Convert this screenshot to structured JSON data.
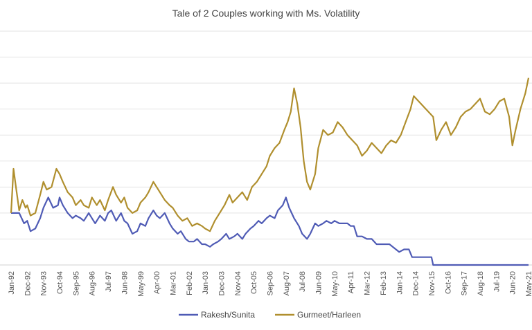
{
  "chart_data": {
    "type": "line",
    "title": "Tale of 2 Couples working with Ms. Volatility",
    "xlabel": "",
    "ylabel": "",
    "grid": true,
    "legend_position": "bottom",
    "x_ticks": [
      "Jan-92",
      "Dec-92",
      "Nov-93",
      "Oct-94",
      "Sep-95",
      "Aug-96",
      "Jul-97",
      "Jun-98",
      "May-99",
      "Apr-00",
      "Mar-01",
      "Feb-02",
      "Jan-03",
      "Dec-03",
      "Nov-04",
      "Oct-05",
      "Sep-06",
      "Aug-07",
      "Jul-08",
      "Jun-09",
      "May-10",
      "Apr-11",
      "Mar-12",
      "Feb-13",
      "Jan-14",
      "Dec-14",
      "Nov-15",
      "Oct-16",
      "Sep-17",
      "Aug-18",
      "Jul-19",
      "Jun-20",
      "May-21"
    ],
    "ylim": [
      0,
      9
    ],
    "series": [
      {
        "name": "Rakesh/Sunita",
        "color": "#4f5bb5",
        "points": [
          [
            0,
            2.0
          ],
          [
            0.2,
            2.0
          ],
          [
            0.5,
            2.0
          ],
          [
            0.8,
            1.6
          ],
          [
            1.0,
            1.7
          ],
          [
            1.2,
            1.3
          ],
          [
            1.5,
            1.4
          ],
          [
            1.8,
            1.8
          ],
          [
            2.0,
            2.2
          ],
          [
            2.3,
            2.6
          ],
          [
            2.6,
            2.2
          ],
          [
            2.9,
            2.3
          ],
          [
            3.0,
            2.6
          ],
          [
            3.2,
            2.3
          ],
          [
            3.5,
            2.0
          ],
          [
            3.8,
            1.8
          ],
          [
            4.0,
            1.9
          ],
          [
            4.3,
            1.8
          ],
          [
            4.5,
            1.7
          ],
          [
            4.8,
            2.0
          ],
          [
            5.0,
            1.8
          ],
          [
            5.2,
            1.6
          ],
          [
            5.5,
            1.9
          ],
          [
            5.8,
            1.7
          ],
          [
            6.0,
            2.0
          ],
          [
            6.2,
            2.1
          ],
          [
            6.5,
            1.7
          ],
          [
            6.8,
            2.0
          ],
          [
            7.0,
            1.7
          ],
          [
            7.2,
            1.6
          ],
          [
            7.5,
            1.2
          ],
          [
            7.8,
            1.3
          ],
          [
            8.0,
            1.6
          ],
          [
            8.3,
            1.5
          ],
          [
            8.5,
            1.8
          ],
          [
            8.8,
            2.1
          ],
          [
            9.0,
            1.9
          ],
          [
            9.2,
            1.8
          ],
          [
            9.5,
            2.0
          ],
          [
            9.8,
            1.6
          ],
          [
            10.0,
            1.4
          ],
          [
            10.3,
            1.2
          ],
          [
            10.5,
            1.3
          ],
          [
            10.8,
            1.0
          ],
          [
            11.0,
            0.9
          ],
          [
            11.3,
            0.9
          ],
          [
            11.5,
            1.0
          ],
          [
            11.8,
            0.8
          ],
          [
            12.0,
            0.8
          ],
          [
            12.3,
            0.7
          ],
          [
            12.5,
            0.8
          ],
          [
            12.8,
            0.9
          ],
          [
            13.0,
            1.0
          ],
          [
            13.3,
            1.2
          ],
          [
            13.5,
            1.0
          ],
          [
            13.8,
            1.1
          ],
          [
            14.0,
            1.2
          ],
          [
            14.3,
            1.0
          ],
          [
            14.5,
            1.2
          ],
          [
            14.8,
            1.4
          ],
          [
            15.0,
            1.5
          ],
          [
            15.3,
            1.7
          ],
          [
            15.5,
            1.6
          ],
          [
            15.8,
            1.8
          ],
          [
            16.0,
            1.9
          ],
          [
            16.3,
            1.8
          ],
          [
            16.5,
            2.1
          ],
          [
            16.8,
            2.3
          ],
          [
            17.0,
            2.6
          ],
          [
            17.2,
            2.2
          ],
          [
            17.5,
            1.8
          ],
          [
            17.8,
            1.5
          ],
          [
            18.0,
            1.2
          ],
          [
            18.3,
            1.0
          ],
          [
            18.5,
            1.2
          ],
          [
            18.8,
            1.6
          ],
          [
            19.0,
            1.5
          ],
          [
            19.3,
            1.6
          ],
          [
            19.5,
            1.7
          ],
          [
            19.8,
            1.6
          ],
          [
            20.0,
            1.7
          ],
          [
            20.3,
            1.6
          ],
          [
            20.5,
            1.6
          ],
          [
            20.8,
            1.6
          ],
          [
            21.0,
            1.5
          ],
          [
            21.2,
            1.5
          ],
          [
            21.4,
            1.1
          ],
          [
            21.7,
            1.1
          ],
          [
            22.0,
            1.0
          ],
          [
            22.3,
            1.0
          ],
          [
            22.6,
            0.8
          ],
          [
            23.0,
            0.8
          ],
          [
            23.4,
            0.8
          ],
          [
            23.8,
            0.6
          ],
          [
            24.0,
            0.5
          ],
          [
            24.3,
            0.6
          ],
          [
            24.6,
            0.6
          ],
          [
            24.8,
            0.3
          ],
          [
            25.4,
            0.3
          ],
          [
            26.0,
            0.3
          ],
          [
            26.1,
            0.0
          ],
          [
            27.0,
            0.0
          ],
          [
            28.0,
            0.0
          ],
          [
            29.0,
            0.0
          ],
          [
            30.0,
            0.0
          ],
          [
            31.0,
            0.0
          ],
          [
            32.0,
            0.0
          ]
        ]
      },
      {
        "name": "Gurmeet/Harleen",
        "color": "#b08f2e",
        "points": [
          [
            0,
            2.0
          ],
          [
            0.15,
            3.7
          ],
          [
            0.3,
            3.0
          ],
          [
            0.5,
            2.1
          ],
          [
            0.7,
            2.5
          ],
          [
            0.9,
            2.2
          ],
          [
            1.0,
            2.3
          ],
          [
            1.2,
            1.9
          ],
          [
            1.5,
            2.0
          ],
          [
            1.8,
            2.7
          ],
          [
            2.0,
            3.2
          ],
          [
            2.2,
            2.9
          ],
          [
            2.5,
            3.0
          ],
          [
            2.8,
            3.7
          ],
          [
            3.0,
            3.5
          ],
          [
            3.2,
            3.2
          ],
          [
            3.5,
            2.8
          ],
          [
            3.8,
            2.6
          ],
          [
            4.0,
            2.3
          ],
          [
            4.3,
            2.5
          ],
          [
            4.5,
            2.3
          ],
          [
            4.8,
            2.2
          ],
          [
            5.0,
            2.6
          ],
          [
            5.3,
            2.3
          ],
          [
            5.5,
            2.5
          ],
          [
            5.8,
            2.1
          ],
          [
            6.0,
            2.5
          ],
          [
            6.3,
            3.0
          ],
          [
            6.5,
            2.7
          ],
          [
            6.8,
            2.4
          ],
          [
            7.0,
            2.6
          ],
          [
            7.2,
            2.2
          ],
          [
            7.5,
            2.0
          ],
          [
            7.8,
            2.1
          ],
          [
            8.0,
            2.4
          ],
          [
            8.3,
            2.6
          ],
          [
            8.5,
            2.8
          ],
          [
            8.8,
            3.2
          ],
          [
            9.0,
            3.0
          ],
          [
            9.2,
            2.8
          ],
          [
            9.5,
            2.5
          ],
          [
            9.8,
            2.3
          ],
          [
            10.0,
            2.2
          ],
          [
            10.3,
            1.9
          ],
          [
            10.6,
            1.7
          ],
          [
            10.9,
            1.8
          ],
          [
            11.2,
            1.5
          ],
          [
            11.5,
            1.6
          ],
          [
            11.8,
            1.5
          ],
          [
            12.0,
            1.4
          ],
          [
            12.3,
            1.3
          ],
          [
            12.6,
            1.7
          ],
          [
            12.9,
            2.0
          ],
          [
            13.2,
            2.3
          ],
          [
            13.5,
            2.7
          ],
          [
            13.7,
            2.4
          ],
          [
            14.0,
            2.6
          ],
          [
            14.3,
            2.8
          ],
          [
            14.6,
            2.5
          ],
          [
            14.9,
            3.0
          ],
          [
            15.2,
            3.2
          ],
          [
            15.5,
            3.5
          ],
          [
            15.8,
            3.8
          ],
          [
            16.0,
            4.2
          ],
          [
            16.3,
            4.5
          ],
          [
            16.6,
            4.7
          ],
          [
            16.9,
            5.2
          ],
          [
            17.1,
            5.5
          ],
          [
            17.3,
            5.9
          ],
          [
            17.5,
            6.8
          ],
          [
            17.7,
            6.2
          ],
          [
            17.9,
            5.3
          ],
          [
            18.1,
            4.0
          ],
          [
            18.3,
            3.2
          ],
          [
            18.5,
            2.9
          ],
          [
            18.8,
            3.5
          ],
          [
            19.0,
            4.5
          ],
          [
            19.3,
            5.2
          ],
          [
            19.6,
            5.0
          ],
          [
            19.9,
            5.1
          ],
          [
            20.2,
            5.5
          ],
          [
            20.5,
            5.3
          ],
          [
            20.8,
            5.0
          ],
          [
            21.1,
            4.8
          ],
          [
            21.4,
            4.6
          ],
          [
            21.7,
            4.2
          ],
          [
            22.0,
            4.4
          ],
          [
            22.3,
            4.7
          ],
          [
            22.6,
            4.5
          ],
          [
            22.9,
            4.3
          ],
          [
            23.2,
            4.6
          ],
          [
            23.5,
            4.8
          ],
          [
            23.8,
            4.7
          ],
          [
            24.1,
            5.0
          ],
          [
            24.4,
            5.5
          ],
          [
            24.7,
            6.0
          ],
          [
            24.9,
            6.5
          ],
          [
            25.2,
            6.3
          ],
          [
            25.5,
            6.1
          ],
          [
            25.8,
            5.9
          ],
          [
            26.1,
            5.7
          ],
          [
            26.3,
            4.8
          ],
          [
            26.6,
            5.2
          ],
          [
            26.9,
            5.5
          ],
          [
            27.2,
            5.0
          ],
          [
            27.5,
            5.3
          ],
          [
            27.8,
            5.7
          ],
          [
            28.1,
            5.9
          ],
          [
            28.4,
            6.0
          ],
          [
            28.7,
            6.2
          ],
          [
            29.0,
            6.4
          ],
          [
            29.3,
            5.9
          ],
          [
            29.6,
            5.8
          ],
          [
            29.9,
            6.0
          ],
          [
            30.2,
            6.3
          ],
          [
            30.5,
            6.4
          ],
          [
            30.8,
            5.7
          ],
          [
            31.0,
            4.6
          ],
          [
            31.2,
            5.2
          ],
          [
            31.5,
            6.0
          ],
          [
            31.8,
            6.6
          ],
          [
            32.0,
            7.2
          ]
        ]
      }
    ]
  }
}
